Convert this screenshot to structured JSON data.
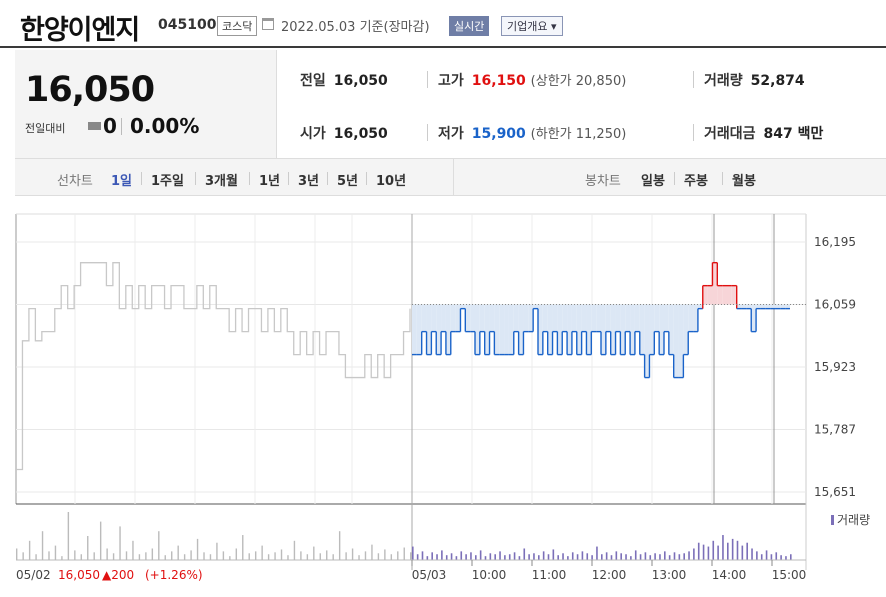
{
  "header": {
    "name": "한양이엔지",
    "code": "045100",
    "market": "코스닥",
    "date": "2022.05.03",
    "basis": "기준(장마감)",
    "realtime": "실시간",
    "overview": "기업개요 ▾"
  },
  "quote": {
    "price": "16,050",
    "change_label": "전일대비",
    "change_value": "0",
    "change_pct": "0.00%",
    "prev_label": "전일",
    "prev_value": "16,050",
    "open_label": "시가",
    "open_value": "16,050",
    "high_label": "고가",
    "high_value": "16,150",
    "upper_limit": "(상한가 20,850)",
    "low_label": "저가",
    "low_value": "15,900",
    "lower_limit": "(하한가 11,250)",
    "volume_label": "거래량",
    "volume_value": "52,874",
    "amount_label": "거래대금",
    "amount_value": "847 백만"
  },
  "periods": {
    "line_label": "선차트",
    "line_tabs": [
      "1일",
      "1주일",
      "3개월",
      "1년",
      "3년",
      "5년",
      "10년"
    ],
    "active": "1일",
    "candle_label": "봉차트",
    "candle_tabs": [
      "일봉",
      "주봉",
      "월봉"
    ]
  },
  "colors": {
    "up": "#e01010",
    "down": "#1a63c9",
    "prev_day_line": "#c8c8c8",
    "below_fill": "#dce7f5",
    "above_fill": "#f7d5d8",
    "volume_prev": "#bbbbbb",
    "volume_today": "#7b6fb8"
  },
  "chart_data": {
    "type": "line",
    "y_ticks": [
      "16,195",
      "16,059",
      "15,923",
      "15,787",
      "15,651"
    ],
    "ylim": [
      15651,
      16195
    ],
    "baseline": 16059,
    "x_ticks": [
      "05/03",
      "10:00",
      "11:00",
      "12:00",
      "13:00",
      "14:00",
      "15:00"
    ],
    "volume_label": "거래량",
    "footer": {
      "prev_date": "05/02",
      "prev_close": "16,050",
      "prev_change": "▲200",
      "prev_change_pct": "(+1.26%)"
    },
    "prev_day": [
      15700,
      15980,
      16050,
      15980,
      16000,
      16000,
      16050,
      16100,
      16050,
      16100,
      16150,
      16150,
      16150,
      16150,
      16100,
      16150,
      16050,
      16100,
      16050,
      16100,
      16050,
      16100,
      16100,
      16050,
      16100,
      16100,
      16050,
      16050,
      16100,
      16050,
      16100,
      16050,
      16050,
      16000,
      16050,
      16000,
      16050,
      16050,
      16000,
      16050,
      16000,
      16050,
      16000,
      15950,
      16000,
      15950,
      16000,
      15950,
      16000,
      16000,
      15950,
      15900,
      15900,
      15900,
      15950,
      15900,
      15950,
      15900,
      15950,
      15950,
      16000,
      16050
    ],
    "today_time": [
      "09:00",
      "09:05",
      "09:10",
      "09:15",
      "09:20",
      "09:25",
      "09:30",
      "09:35",
      "09:40",
      "09:45",
      "09:50",
      "09:55",
      "10:00",
      "10:05",
      "10:10",
      "10:15",
      "10:20",
      "10:25",
      "10:30",
      "10:35",
      "10:40",
      "10:45",
      "10:50",
      "10:55",
      "11:00",
      "11:05",
      "11:10",
      "11:15",
      "11:20",
      "11:25",
      "11:30",
      "11:35",
      "11:40",
      "11:45",
      "11:50",
      "11:55",
      "12:00",
      "12:05",
      "12:10",
      "12:15",
      "12:20",
      "12:25",
      "12:30",
      "12:35",
      "12:40",
      "12:45",
      "12:50",
      "12:55",
      "13:00",
      "13:05",
      "13:10",
      "13:15",
      "13:20",
      "13:25",
      "13:30",
      "13:35",
      "13:40",
      "13:45",
      "13:50",
      "13:55",
      "14:00",
      "14:05",
      "14:10",
      "14:15",
      "14:20",
      "14:25",
      "14:30",
      "14:35",
      "14:40",
      "14:45",
      "14:50",
      "14:55",
      "15:00",
      "15:05",
      "15:10",
      "15:15",
      "15:20",
      "15:25",
      "15:30"
    ],
    "today_price": [
      15950,
      15950,
      16000,
      15950,
      16000,
      15950,
      16000,
      15950,
      16000,
      16000,
      16050,
      16000,
      16000,
      15950,
      16000,
      15950,
      16000,
      15950,
      15950,
      15950,
      15950,
      16000,
      15950,
      16000,
      16000,
      16050,
      15950,
      16000,
      15950,
      16000,
      15950,
      16000,
      15950,
      16000,
      15950,
      16000,
      15950,
      16000,
      16000,
      15950,
      16000,
      15950,
      16000,
      15950,
      16000,
      15950,
      16000,
      15950,
      15900,
      15950,
      16000,
      15950,
      16000,
      15950,
      15900,
      15900,
      15950,
      16000,
      16000,
      16050,
      16100,
      16100,
      16150,
      16100,
      16100,
      16100,
      16100,
      16050,
      16050,
      16050,
      16000,
      16050,
      16050,
      16050,
      16050,
      16050,
      16050,
      16050,
      16050
    ],
    "prev_volume": [
      120,
      80,
      200,
      60,
      300,
      90,
      150,
      40,
      500,
      100,
      60,
      250,
      80,
      400,
      120,
      70,
      350,
      90,
      200,
      60,
      80,
      120,
      300,
      50,
      90,
      150,
      60,
      100,
      220,
      80,
      60,
      180,
      90,
      40,
      120,
      260,
      70,
      90,
      150,
      60,
      80,
      110,
      50,
      200,
      90,
      60,
      140,
      70,
      100,
      60,
      300,
      80,
      120,
      50,
      90,
      160,
      70,
      110,
      60,
      90,
      130,
      80
    ],
    "today_volume": [
      140,
      60,
      90,
      40,
      80,
      60,
      100,
      50,
      70,
      40,
      90,
      60,
      80,
      50,
      100,
      40,
      70,
      60,
      90,
      50,
      60,
      80,
      40,
      120,
      60,
      70,
      50,
      90,
      60,
      110,
      50,
      70,
      40,
      80,
      60,
      90,
      70,
      50,
      140,
      60,
      80,
      50,
      90,
      70,
      60,
      40,
      100,
      60,
      80,
      50,
      70,
      60,
      90,
      50,
      80,
      60,
      70,
      90,
      120,
      180,
      160,
      140,
      200,
      150,
      260,
      180,
      220,
      200,
      150,
      180,
      120,
      90,
      60,
      100,
      60,
      80,
      50,
      40,
      60
    ]
  }
}
